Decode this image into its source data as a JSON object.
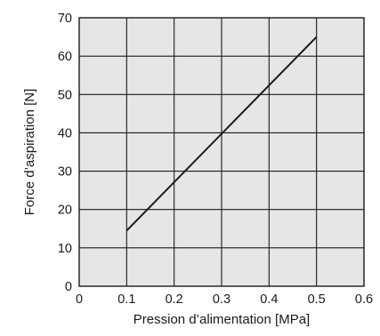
{
  "chart_data": {
    "type": "line",
    "title": "",
    "xlabel": "Pression d’alimentation [MPa]",
    "ylabel": "Force d’aspiration [N]",
    "xlim": [
      0,
      0.6
    ],
    "ylim": [
      0,
      70
    ],
    "x_ticks": [
      "0",
      "0.1",
      "0.2",
      "0.3",
      "0.4",
      "0.5",
      "0.6"
    ],
    "y_ticks": [
      "0",
      "10",
      "20",
      "30",
      "40",
      "50",
      "60",
      "70"
    ],
    "grid": true,
    "legend": "none",
    "series": [
      {
        "x": [
          0.1,
          0.5
        ],
        "y": [
          14.5,
          65
        ]
      }
    ],
    "colors": {
      "plot_background": "#e6e6e6",
      "grid": "#1a1a1a",
      "line": "#1a1a1a",
      "text": "#1a1a1a"
    }
  }
}
